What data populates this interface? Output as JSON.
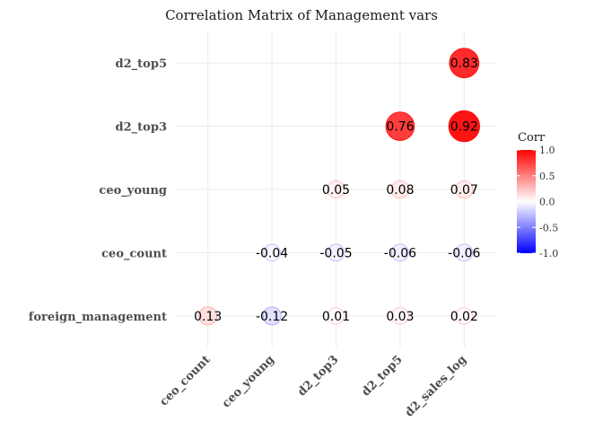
{
  "chart_data": {
    "type": "heatmap",
    "title": "Correlation Matrix of Management vars",
    "xlabel": "",
    "ylabel": "",
    "x_categories": [
      "ceo_count",
      "ceo_young",
      "d2_top3",
      "d2_top5",
      "d2_sales_log"
    ],
    "y_categories": [
      "foreign_management",
      "ceo_count",
      "ceo_young",
      "d2_top3",
      "d2_top5"
    ],
    "cells": [
      {
        "x": "ceo_count",
        "y": "foreign_management",
        "value": 0.13,
        "label": "0.13"
      },
      {
        "x": "ceo_young",
        "y": "foreign_management",
        "value": -0.12,
        "label": "-0.12"
      },
      {
        "x": "d2_top3",
        "y": "foreign_management",
        "value": 0.01,
        "label": "0.01"
      },
      {
        "x": "d2_top5",
        "y": "foreign_management",
        "value": 0.03,
        "label": "0.03"
      },
      {
        "x": "d2_sales_log",
        "y": "foreign_management",
        "value": 0.02,
        "label": "0.02"
      },
      {
        "x": "ceo_young",
        "y": "ceo_count",
        "value": -0.04,
        "label": "-0.04"
      },
      {
        "x": "d2_top3",
        "y": "ceo_count",
        "value": -0.05,
        "label": "-0.05"
      },
      {
        "x": "d2_top5",
        "y": "ceo_count",
        "value": -0.06,
        "label": "-0.06"
      },
      {
        "x": "d2_sales_log",
        "y": "ceo_count",
        "value": -0.06,
        "label": "-0.06"
      },
      {
        "x": "d2_top3",
        "y": "ceo_young",
        "value": 0.05,
        "label": "0.05"
      },
      {
        "x": "d2_top5",
        "y": "ceo_young",
        "value": 0.08,
        "label": "0.08"
      },
      {
        "x": "d2_sales_log",
        "y": "ceo_young",
        "value": 0.07,
        "label": "0.07"
      },
      {
        "x": "d2_top5",
        "y": "d2_top3",
        "value": 0.76,
        "label": "0.76"
      },
      {
        "x": "d2_sales_log",
        "y": "d2_top3",
        "value": 0.92,
        "label": "0.92"
      },
      {
        "x": "d2_sales_log",
        "y": "d2_top5",
        "value": 0.83,
        "label": "0.83"
      }
    ],
    "legend": {
      "title": "Corr",
      "position": "right",
      "ticks": [
        1.0,
        0.5,
        0.0,
        -0.5,
        -1.0
      ],
      "tick_labels": [
        "1.0",
        "0.5",
        "0.0",
        "-0.5",
        "-1.0"
      ],
      "range": [
        -1,
        1
      ]
    },
    "colors": {
      "low": "#0000FF",
      "mid": "#FFFFFF",
      "high": "#FF0000",
      "grid": "#EBEBEB",
      "text": "#000000",
      "axis_text": "#4D4D4D"
    },
    "grid": true
  }
}
